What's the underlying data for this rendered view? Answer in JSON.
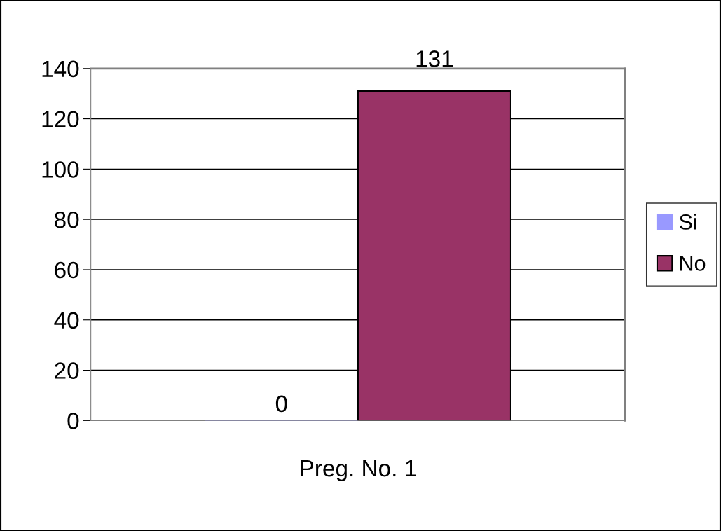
{
  "chart_data": {
    "type": "bar",
    "categories": [
      "Preg. No. 1"
    ],
    "series": [
      {
        "name": "Si",
        "color": "#9999ff",
        "values": [
          0
        ]
      },
      {
        "name": "No",
        "color": "#993366",
        "values": [
          131
        ]
      }
    ],
    "ylim": [
      0,
      140
    ],
    "yticks": [
      0,
      20,
      40,
      60,
      80,
      100,
      120,
      140
    ],
    "grid": "y",
    "legend": "right",
    "data_labels": true
  }
}
